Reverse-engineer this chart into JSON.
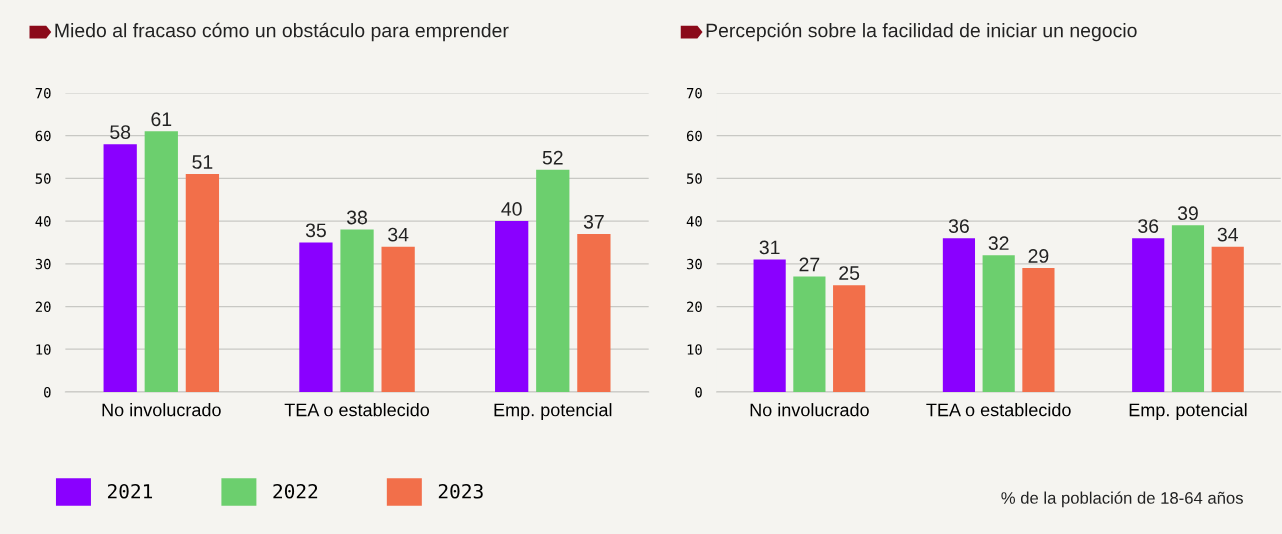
{
  "chart_data": [
    {
      "type": "bar",
      "title": "Miedo al fracaso cómo un obstáculo para emprender",
      "categories": [
        "No involucrado",
        "TEA o establecido",
        "Emp. potencial"
      ],
      "series": [
        {
          "name": "2021",
          "color": "#8a00ff",
          "values": [
            58,
            35,
            40
          ]
        },
        {
          "name": "2022",
          "color": "#6ccf6e",
          "values": [
            61,
            38,
            52
          ]
        },
        {
          "name": "2023",
          "color": "#f26f4a",
          "values": [
            51,
            34,
            37
          ]
        }
      ],
      "ylim": [
        0,
        70
      ],
      "yticks": [
        0,
        10,
        20,
        30,
        40,
        50,
        60,
        70
      ],
      "grid": "y",
      "data_labels": true,
      "legend": "bottom left"
    },
    {
      "type": "bar",
      "title": "Percepción sobre la facilidad de iniciar un negocio",
      "categories": [
        "No involucrado",
        "TEA o establecido",
        "Emp. potencial"
      ],
      "series": [
        {
          "color": "#8a00ff",
          "values": [
            31,
            36,
            36
          ]
        },
        {
          "color": "#6ccf6e",
          "values": [
            27,
            32,
            39
          ]
        },
        {
          "color": "#f26f4a",
          "values": [
            25,
            29,
            34
          ]
        }
      ],
      "ylim": [
        0,
        70
      ],
      "yticks": [
        0,
        10,
        20,
        30,
        40,
        50,
        60,
        70
      ],
      "grid": "y",
      "data_labels": true,
      "annotations": [
        "% de la población de 18-64 años"
      ]
    }
  ]
}
